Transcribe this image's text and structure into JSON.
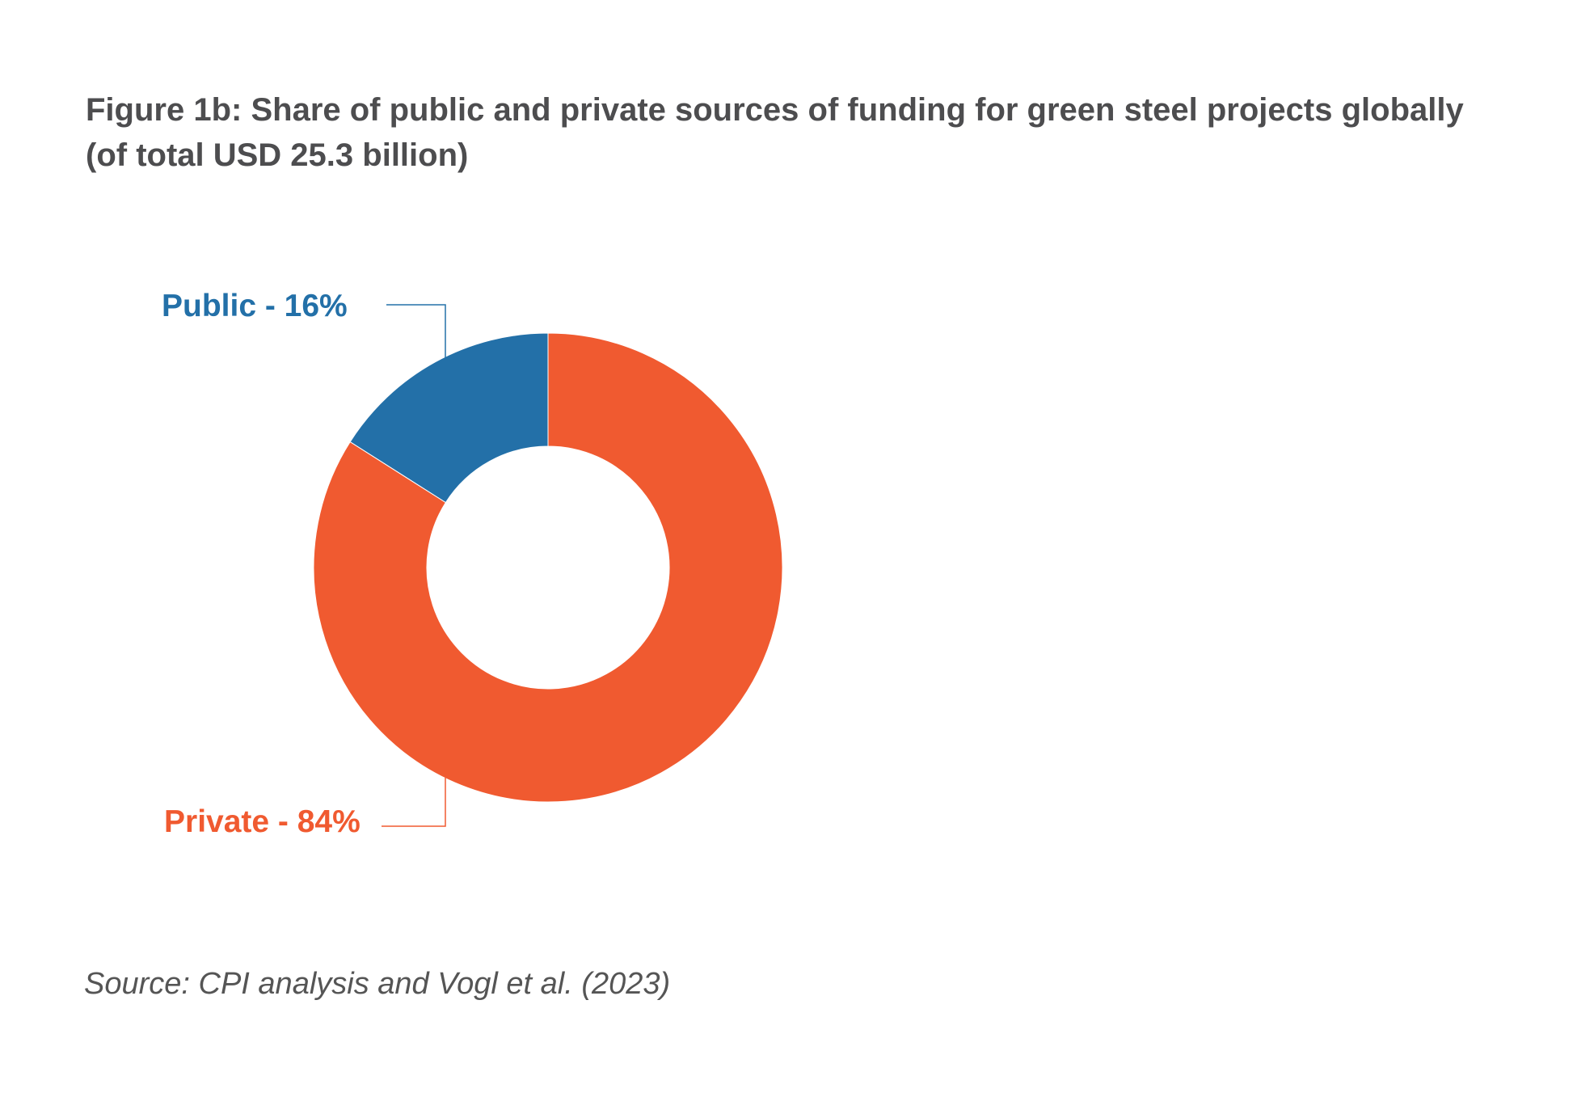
{
  "title_line1": "Figure 1b: Share of public and private sources of funding for green steel projects globally",
  "title_line2": "(of total USD 25.3 billion)",
  "source": "Source: CPI analysis and Vogl et al. (2023)",
  "chart_data": {
    "type": "pie",
    "donut": true,
    "slices": [
      {
        "label": "Public - 16%",
        "value": 16,
        "color": "#2370a8"
      },
      {
        "label": "Private - 84%",
        "value": 84,
        "color": "#f05a30"
      }
    ],
    "title": "Figure 1b: Share of public and private sources of funding for green steel projects globally (of total USD 25.3 billion)",
    "legend": "none"
  }
}
